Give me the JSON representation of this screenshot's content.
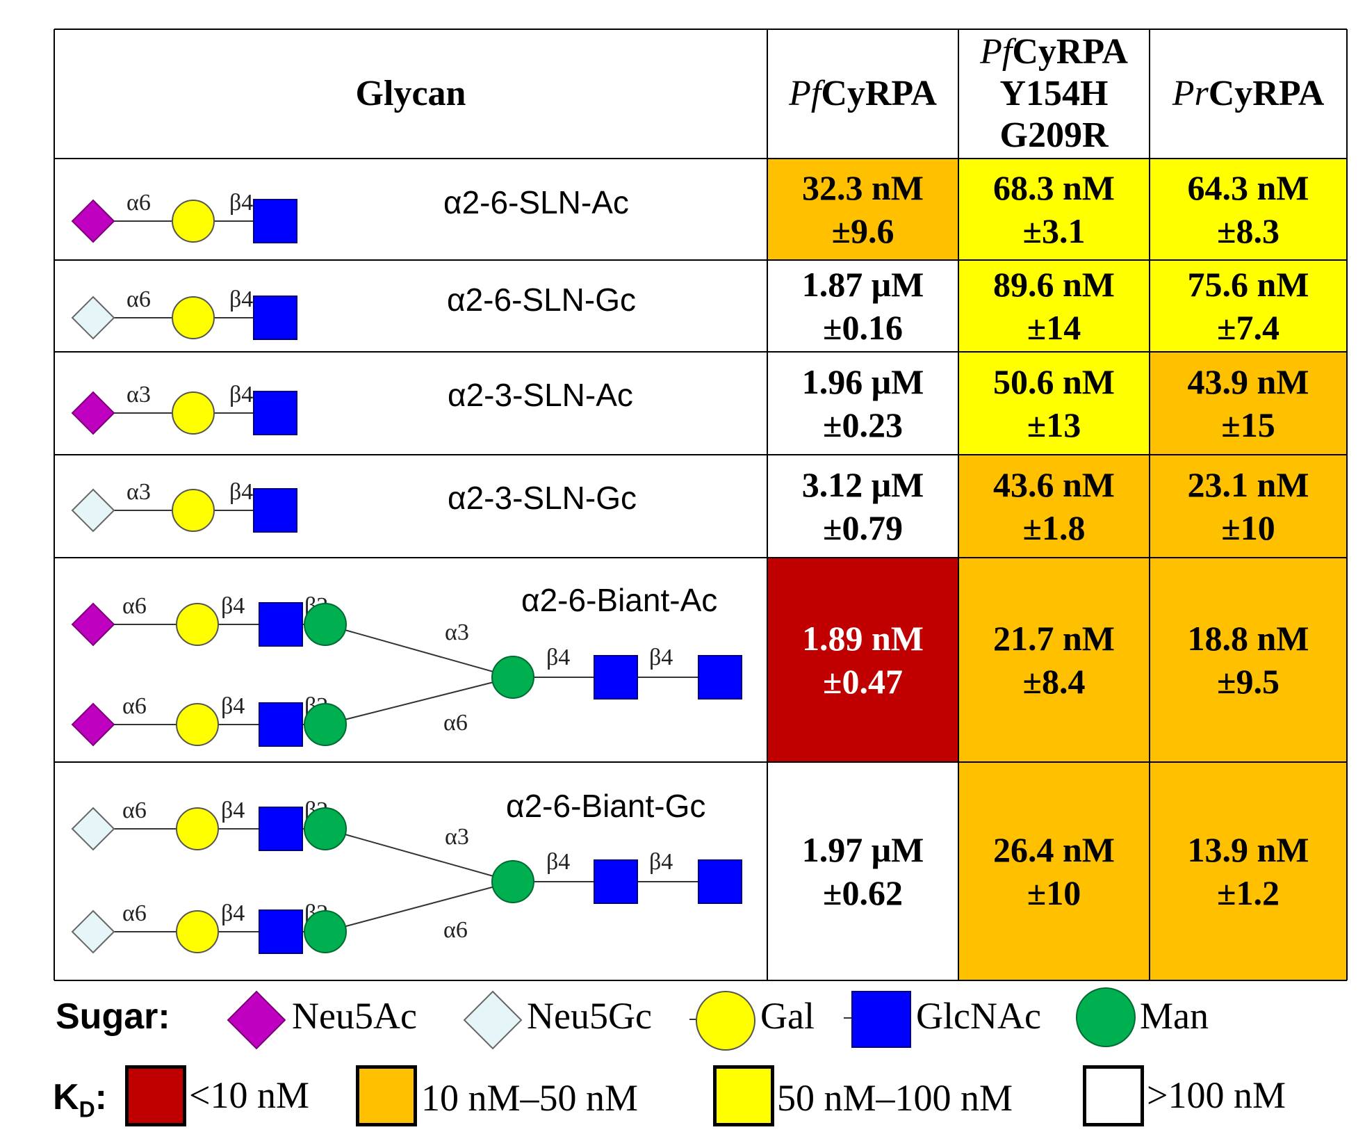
{
  "colors": {
    "dark_red": "#c00000",
    "orange": "#ffc000",
    "yellow": "#ffff00",
    "white": "#ffffff",
    "neu5ac": "#c000c0",
    "neu5gc": "#e6f5f7",
    "gal": "#ffff00",
    "glcnac": "#0000ff",
    "man": "#00b050"
  },
  "header": {
    "glycan": "Glycan",
    "col1": {
      "italic": "Pf",
      "rest": "CyRPA"
    },
    "col2": {
      "italic": "Pf",
      "rest": "CyRPA",
      "line2": "Y154H",
      "line3": "G209R"
    },
    "col3": {
      "italic": "Pr",
      "rest": "CyRPA"
    }
  },
  "rows": [
    {
      "name": "α2-6-SLN-Ac",
      "sialic": "Neu5Ac",
      "linkage": "α6",
      "gal_link": "β4",
      "cells": [
        {
          "value": "32.3 nM",
          "err": "±9.6",
          "bin": "orange"
        },
        {
          "value": "68.3 nM",
          "err": "±3.1",
          "bin": "yellow"
        },
        {
          "value": "64.3 nM",
          "err": "±8.3",
          "bin": "yellow"
        }
      ]
    },
    {
      "name": "α2-6-SLN-Gc",
      "sialic": "Neu5Gc",
      "linkage": "α6",
      "gal_link": "β4",
      "cells": [
        {
          "value": "1.87 μM",
          "err": "±0.16",
          "bin": "white"
        },
        {
          "value": "89.6 nM",
          "err": "±14",
          "bin": "yellow"
        },
        {
          "value": "75.6 nM",
          "err": "±7.4",
          "bin": "yellow"
        }
      ]
    },
    {
      "name": "α2-3-SLN-Ac",
      "sialic": "Neu5Ac",
      "linkage": "α3",
      "gal_link": "β4",
      "cells": [
        {
          "value": "1.96 μM",
          "err": "±0.23",
          "bin": "white"
        },
        {
          "value": "50.6 nM",
          "err": "±13",
          "bin": "yellow"
        },
        {
          "value": "43.9 nM",
          "err": "±15",
          "bin": "orange"
        }
      ]
    },
    {
      "name": "α2-3-SLN-Gc",
      "sialic": "Neu5Gc",
      "linkage": "α3",
      "gal_link": "β4",
      "cells": [
        {
          "value": "3.12 μM",
          "err": "±0.79",
          "bin": "white"
        },
        {
          "value": "43.6 nM",
          "err": "±1.8",
          "bin": "orange"
        },
        {
          "value": "23.1 nM",
          "err": "±10",
          "bin": "orange"
        }
      ]
    },
    {
      "name": "α2-6-Biant-Ac",
      "sialic": "Neu5Ac",
      "cells": [
        {
          "value": "1.89 nM",
          "err": "±0.47",
          "bin": "dark_red"
        },
        {
          "value": "21.7 nM",
          "err": "±8.4",
          "bin": "orange"
        },
        {
          "value": "18.8 nM",
          "err": "±9.5",
          "bin": "orange"
        }
      ]
    },
    {
      "name": "α2-6-Biant-Gc",
      "sialic": "Neu5Gc",
      "cells": [
        {
          "value": "1.97 μM",
          "err": "±0.62",
          "bin": "white"
        },
        {
          "value": "26.4 nM",
          "err": "±10",
          "bin": "orange"
        },
        {
          "value": "13.9 nM",
          "err": "±1.2",
          "bin": "orange"
        }
      ]
    }
  ],
  "biant_labels": {
    "a6": "α6",
    "b4": "β4",
    "b2": "β2",
    "a3": "α3"
  },
  "legend": {
    "sugar_title": "Sugar:",
    "sugars": [
      "Neu5Ac",
      "Neu5Gc",
      "Gal",
      "GlcNAc",
      "Man"
    ],
    "kd_title": "K",
    "kd_sub": "D",
    "kd_suffix": ":",
    "bins": [
      "<10 nM",
      "10 nM–50 nM",
      "50 nM–100 nM",
      ">100 nM"
    ]
  }
}
